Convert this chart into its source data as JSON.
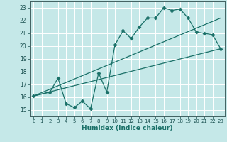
{
  "xlabel": "Humidex (Indice chaleur)",
  "bg_color": "#c5e8e8",
  "grid_color": "#ffffff",
  "line_color": "#1a7068",
  "xlim": [
    -0.5,
    23.5
  ],
  "ylim": [
    14.5,
    23.5
  ],
  "yticks": [
    15,
    16,
    17,
    18,
    19,
    20,
    21,
    22,
    23
  ],
  "xticks": [
    0,
    1,
    2,
    3,
    4,
    5,
    6,
    7,
    8,
    9,
    10,
    11,
    12,
    13,
    14,
    15,
    16,
    17,
    18,
    19,
    20,
    21,
    22,
    23
  ],
  "series1_x": [
    0,
    2,
    3,
    4,
    5,
    6,
    7,
    8,
    9,
    10,
    11,
    12,
    13,
    14,
    15,
    16,
    17,
    18,
    19,
    20,
    21,
    22,
    23
  ],
  "series1_y": [
    16.1,
    16.4,
    17.5,
    15.5,
    15.2,
    15.7,
    15.1,
    17.9,
    16.4,
    20.1,
    21.2,
    20.6,
    21.5,
    22.2,
    22.2,
    23.0,
    22.8,
    22.9,
    22.2,
    21.1,
    21.0,
    20.9,
    19.8
  ],
  "series2_x": [
    0,
    23
  ],
  "series2_y": [
    16.1,
    19.8
  ],
  "series3_x": [
    0,
    23
  ],
  "series3_y": [
    16.1,
    22.2
  ]
}
